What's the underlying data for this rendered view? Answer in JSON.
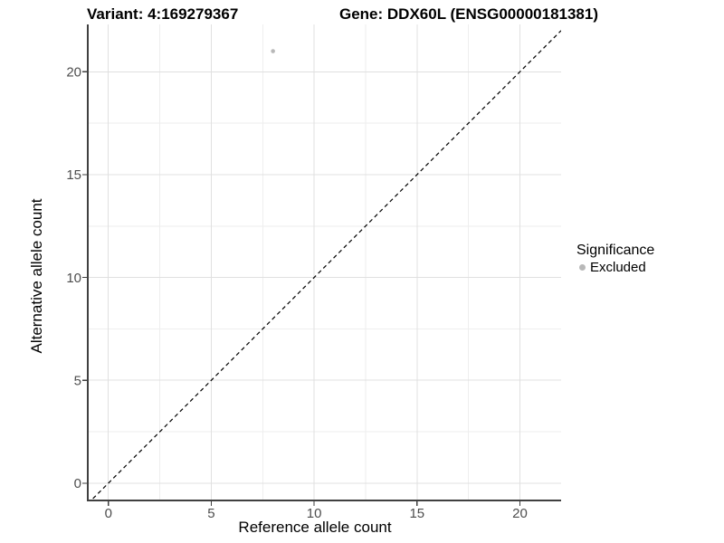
{
  "chart_data": {
    "type": "scatter",
    "titles": {
      "left": "Variant: 4:169279367",
      "right": "Gene: DDX60L (ENSG00000181381)"
    },
    "xlabel": "Reference allele count",
    "ylabel": "Alternative allele count",
    "xlim": [
      -1,
      22
    ],
    "ylim": [
      -0.84,
      22.3
    ],
    "x_ticks": [
      0,
      5,
      10,
      15,
      20
    ],
    "y_ticks": [
      0,
      5,
      10,
      15,
      20
    ],
    "x_minor_ticks": [
      2.5,
      7.5,
      12.5,
      17.5
    ],
    "y_minor_ticks": [
      2.5,
      7.5,
      12.5,
      17.5
    ],
    "grid": true,
    "legend_position": "right",
    "points": [
      {
        "x": 8,
        "y": 21,
        "series": "Excluded",
        "color": "#b8b8b8",
        "radius": 2.3
      }
    ],
    "reference_line": {
      "type": "abline",
      "slope": 1,
      "intercept": 0,
      "style": "dashed",
      "color": "#000000"
    },
    "legend": {
      "title": "Significance",
      "entries": [
        {
          "label": "Excluded",
          "color": "#b8b8b8"
        }
      ]
    },
    "style": {
      "background": "#ffffff",
      "grid_major": "#e0e0e0",
      "grid_minor": "#eeeeee",
      "axis_line": "#404040",
      "tick_mark": "#3f3f3f",
      "tick_text": "#4d4d4d",
      "point_gray": "#b8b8b8"
    }
  }
}
